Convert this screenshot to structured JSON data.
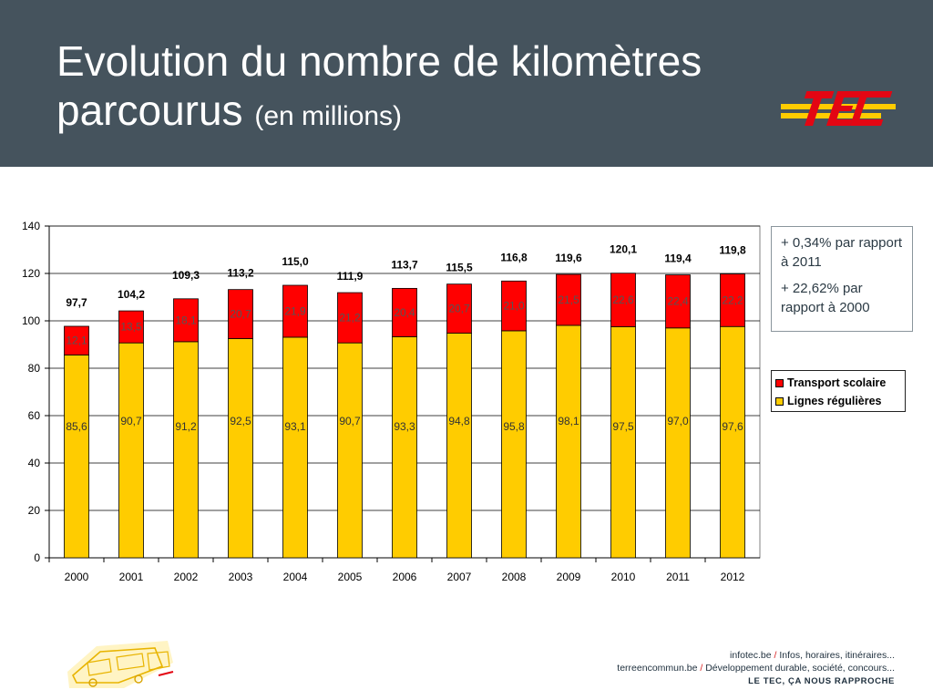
{
  "header": {
    "title": "Evolution du nombre de kilomètres",
    "title_line2": "parcourus",
    "title_unit": "(en millions)",
    "background_color": "#45535d"
  },
  "logo": {
    "text": "TEC",
    "colors": [
      "#e30613",
      "#ffcc00"
    ]
  },
  "notes": [
    "+ 0,34% par rapport à 2011",
    "+ 22,62% par rapport à 2000"
  ],
  "legend": [
    {
      "label": "Transport scolaire",
      "color": "#ff0000"
    },
    {
      "label": "Lignes régulières",
      "color": "#ffcc00"
    }
  ],
  "chart_data": {
    "type": "bar",
    "stacked": true,
    "categories": [
      "2000",
      "2001",
      "2002",
      "2003",
      "2004",
      "2005",
      "2006",
      "2007",
      "2008",
      "2009",
      "2010",
      "2011",
      "2012"
    ],
    "series": [
      {
        "name": "Lignes régulières",
        "color": "#ffcc00",
        "values": [
          85.6,
          90.7,
          91.2,
          92.5,
          93.1,
          90.7,
          93.3,
          94.8,
          95.8,
          98.1,
          97.5,
          97.0,
          97.6
        ],
        "labels": [
          "85,6",
          "90,7",
          "91,2",
          "92,5",
          "93,1",
          "90,7",
          "93,3",
          "94,8",
          "95,8",
          "98,1",
          "97,5",
          "97,0",
          "97,6"
        ]
      },
      {
        "name": "Transport scolaire",
        "color": "#ff0000",
        "values": [
          12.1,
          13.5,
          18.1,
          20.7,
          21.9,
          21.2,
          20.4,
          20.7,
          21.0,
          21.5,
          22.6,
          22.4,
          22.2
        ],
        "labels": [
          "12,1",
          "13,5",
          "18,1",
          "20,7",
          "21,9",
          "21,2",
          "20,4",
          "20,7",
          "21,0",
          "21,5",
          "22,6",
          "22,4",
          "22,2"
        ]
      }
    ],
    "totals": [
      97.7,
      104.2,
      109.3,
      113.2,
      115.0,
      111.9,
      113.7,
      115.5,
      116.8,
      119.6,
      120.1,
      119.4,
      119.8
    ],
    "total_labels": [
      "97,7",
      "104,2",
      "109,3",
      "113,2",
      "115,0",
      "111,9",
      "113,7",
      "115,5",
      "116,8",
      "119,6",
      "120,1",
      "119,4",
      "119,8"
    ],
    "ylim": [
      0,
      140
    ],
    "yticks": [
      0,
      20,
      40,
      60,
      80,
      100,
      120,
      140
    ],
    "grid": true,
    "legend_position": "right"
  },
  "footer": {
    "links": [
      {
        "site": "infotec.be",
        "desc": "Infos, horaires, itinéraires..."
      },
      {
        "site": "terreencommun.be",
        "desc": "Développement durable, société, concours..."
      }
    ],
    "tagline": "LE TEC, ÇA NOUS RAPPROCHE"
  }
}
